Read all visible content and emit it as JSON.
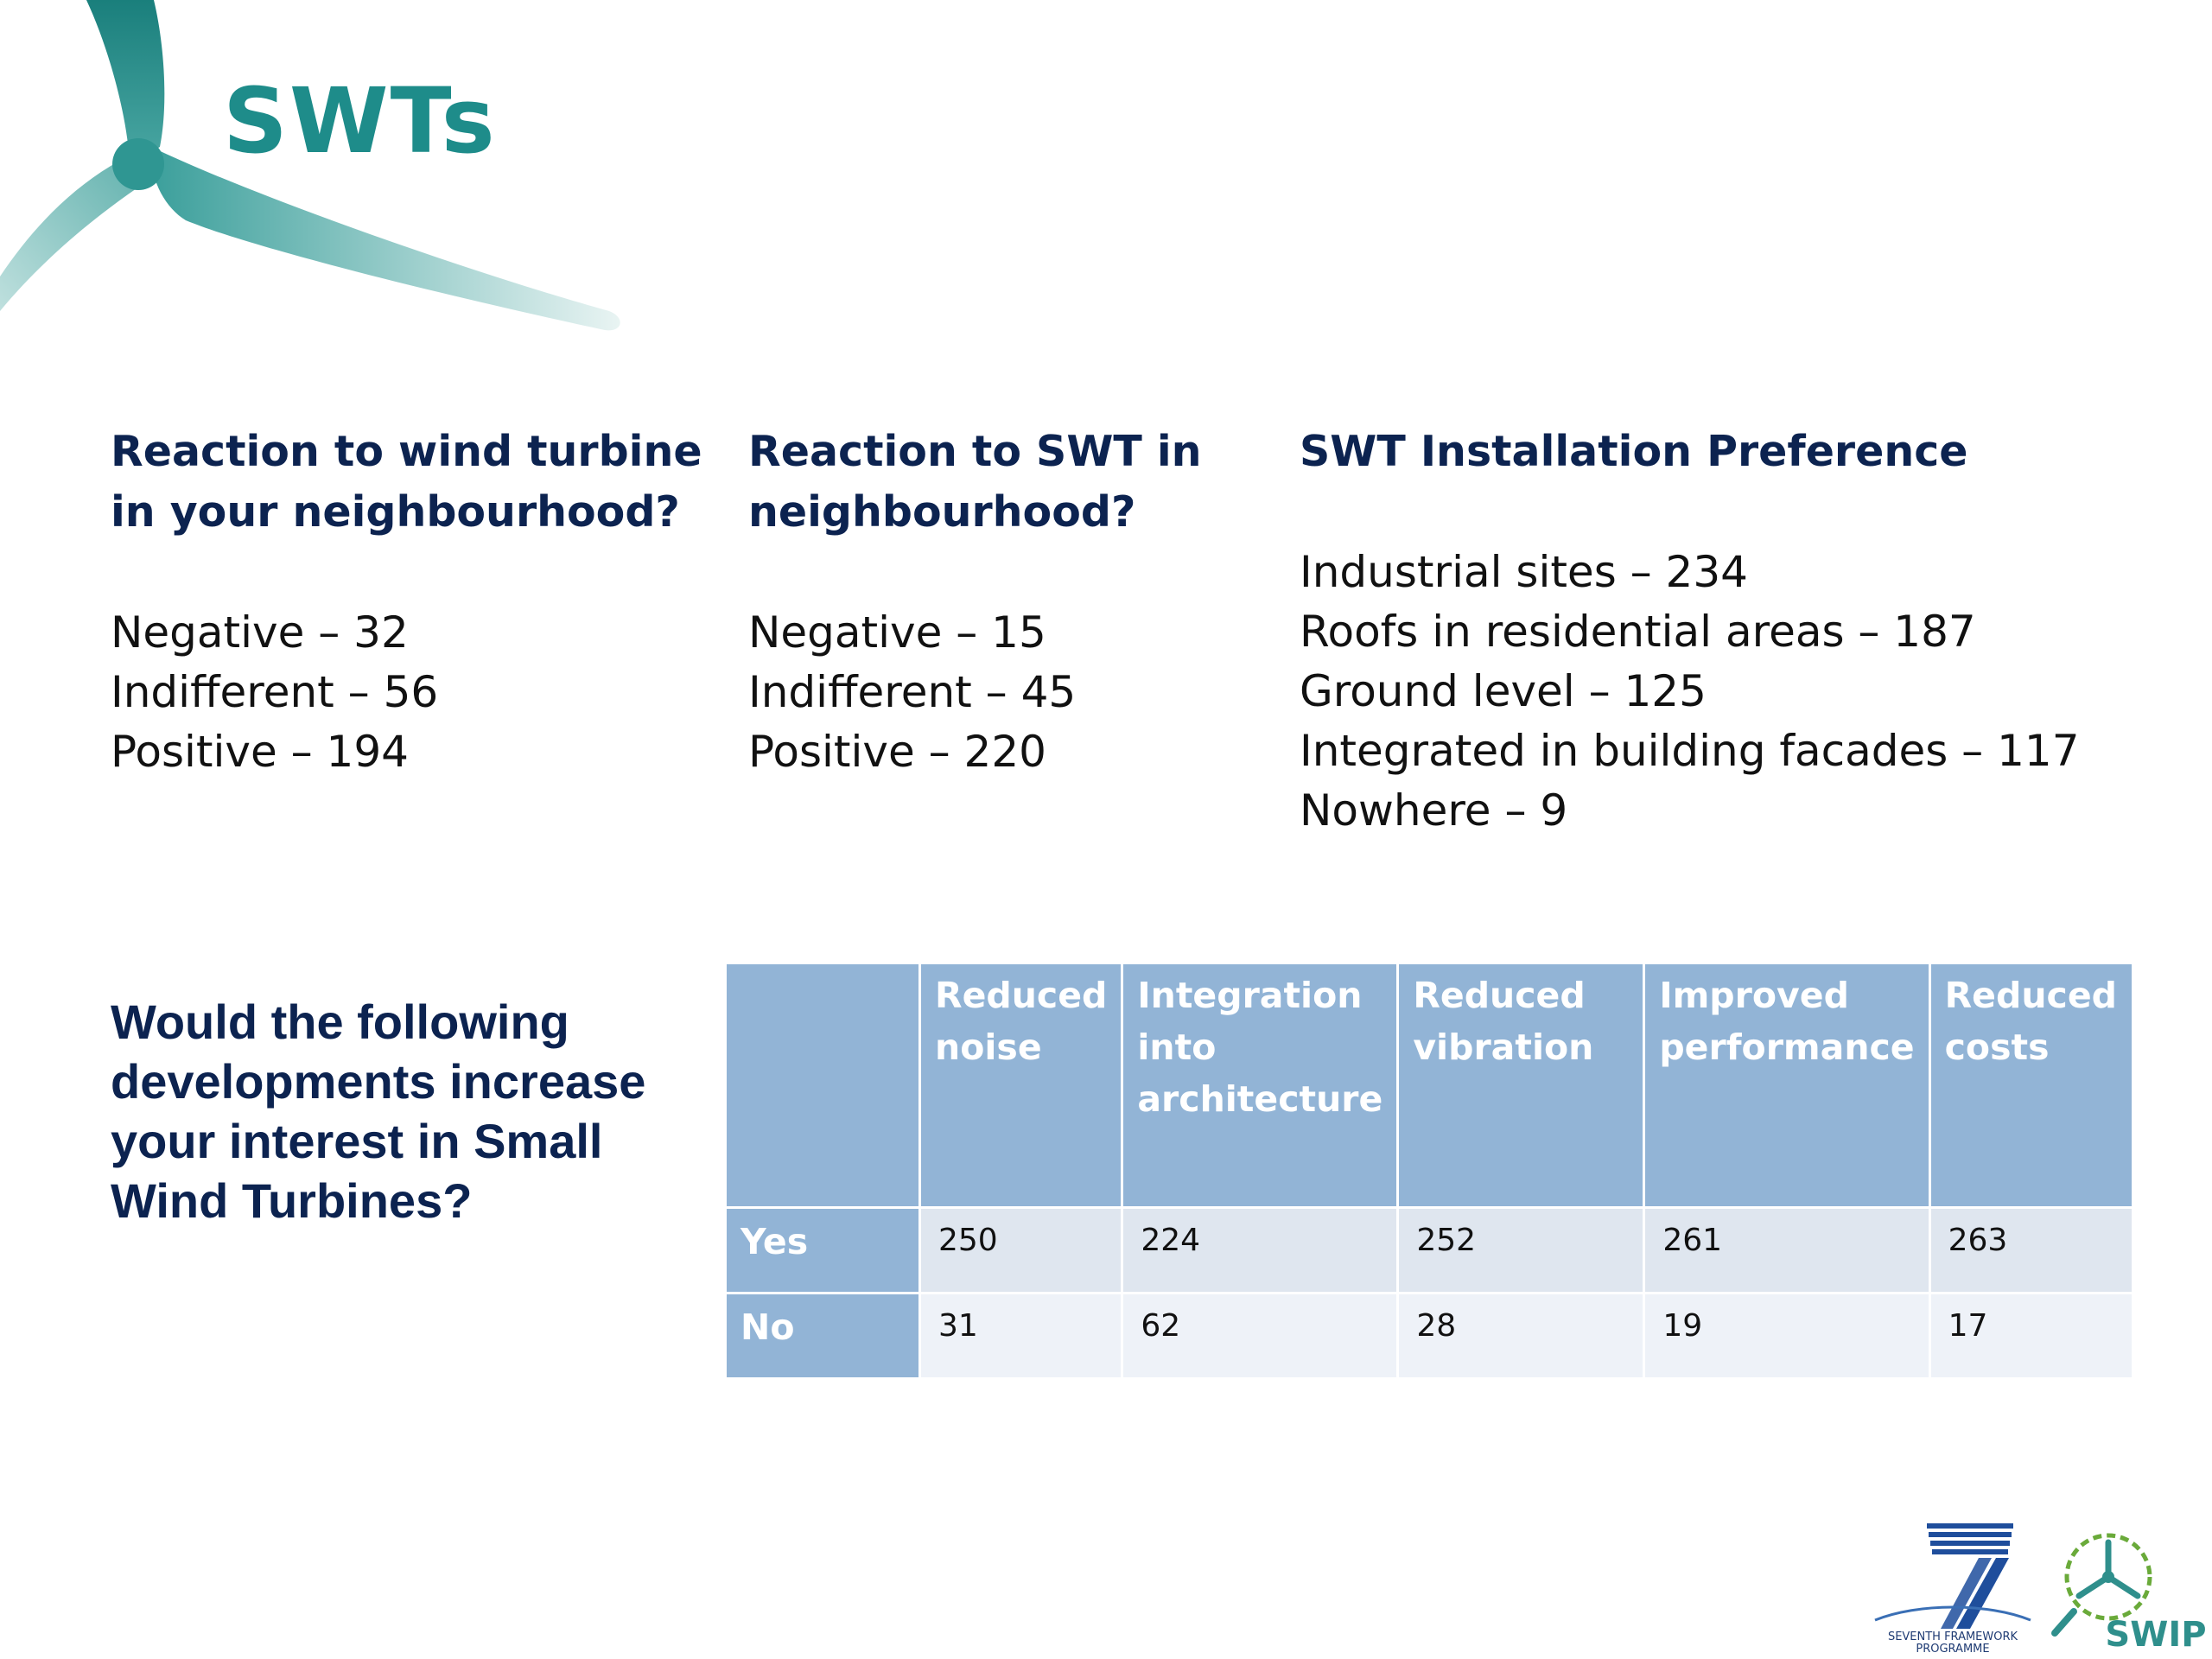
{
  "slide": {
    "title": "SWTs"
  },
  "column1": {
    "heading": "Reaction to wind turbine in your neighbourhood?",
    "items": [
      "Negative – 32",
      "Indifferent – 56",
      "Positive – 194"
    ]
  },
  "column2": {
    "heading": "Reaction to SWT in neighbourhood?",
    "items": [
      "Negative – 15",
      "Indifferent – 45",
      "Positive – 220"
    ]
  },
  "column3": {
    "heading": "SWT Installation Preference",
    "items": [
      "Industrial sites – 234",
      "Roofs in residential areas – 187",
      "Ground level – 125",
      "Integrated in building facades – 117",
      "Nowhere – 9"
    ]
  },
  "question": "Would the following developments increase your interest in Small Wind Turbines?",
  "table": {
    "headers": [
      "",
      "Reduced noise",
      "Integration into architecture",
      "Reduced vibration",
      "Improved performance",
      "Reduced costs"
    ],
    "rows": [
      {
        "label": "Yes",
        "values": [
          "250",
          "224",
          "252",
          "261",
          "263"
        ]
      },
      {
        "label": "No",
        "values": [
          "31",
          "62",
          "28",
          "19",
          "17"
        ]
      }
    ]
  },
  "logos": {
    "fp7_text_line1": "SEVENTH FRAMEWORK",
    "fp7_text_line2": "PROGRAMME",
    "swip_text": "SWIP"
  },
  "colors": {
    "title": "#1e8c8a",
    "heading": "#0c2350",
    "table_header": "#92b4d6",
    "row_yes": "#dfe6ef",
    "row_no": "#eef2f8"
  }
}
